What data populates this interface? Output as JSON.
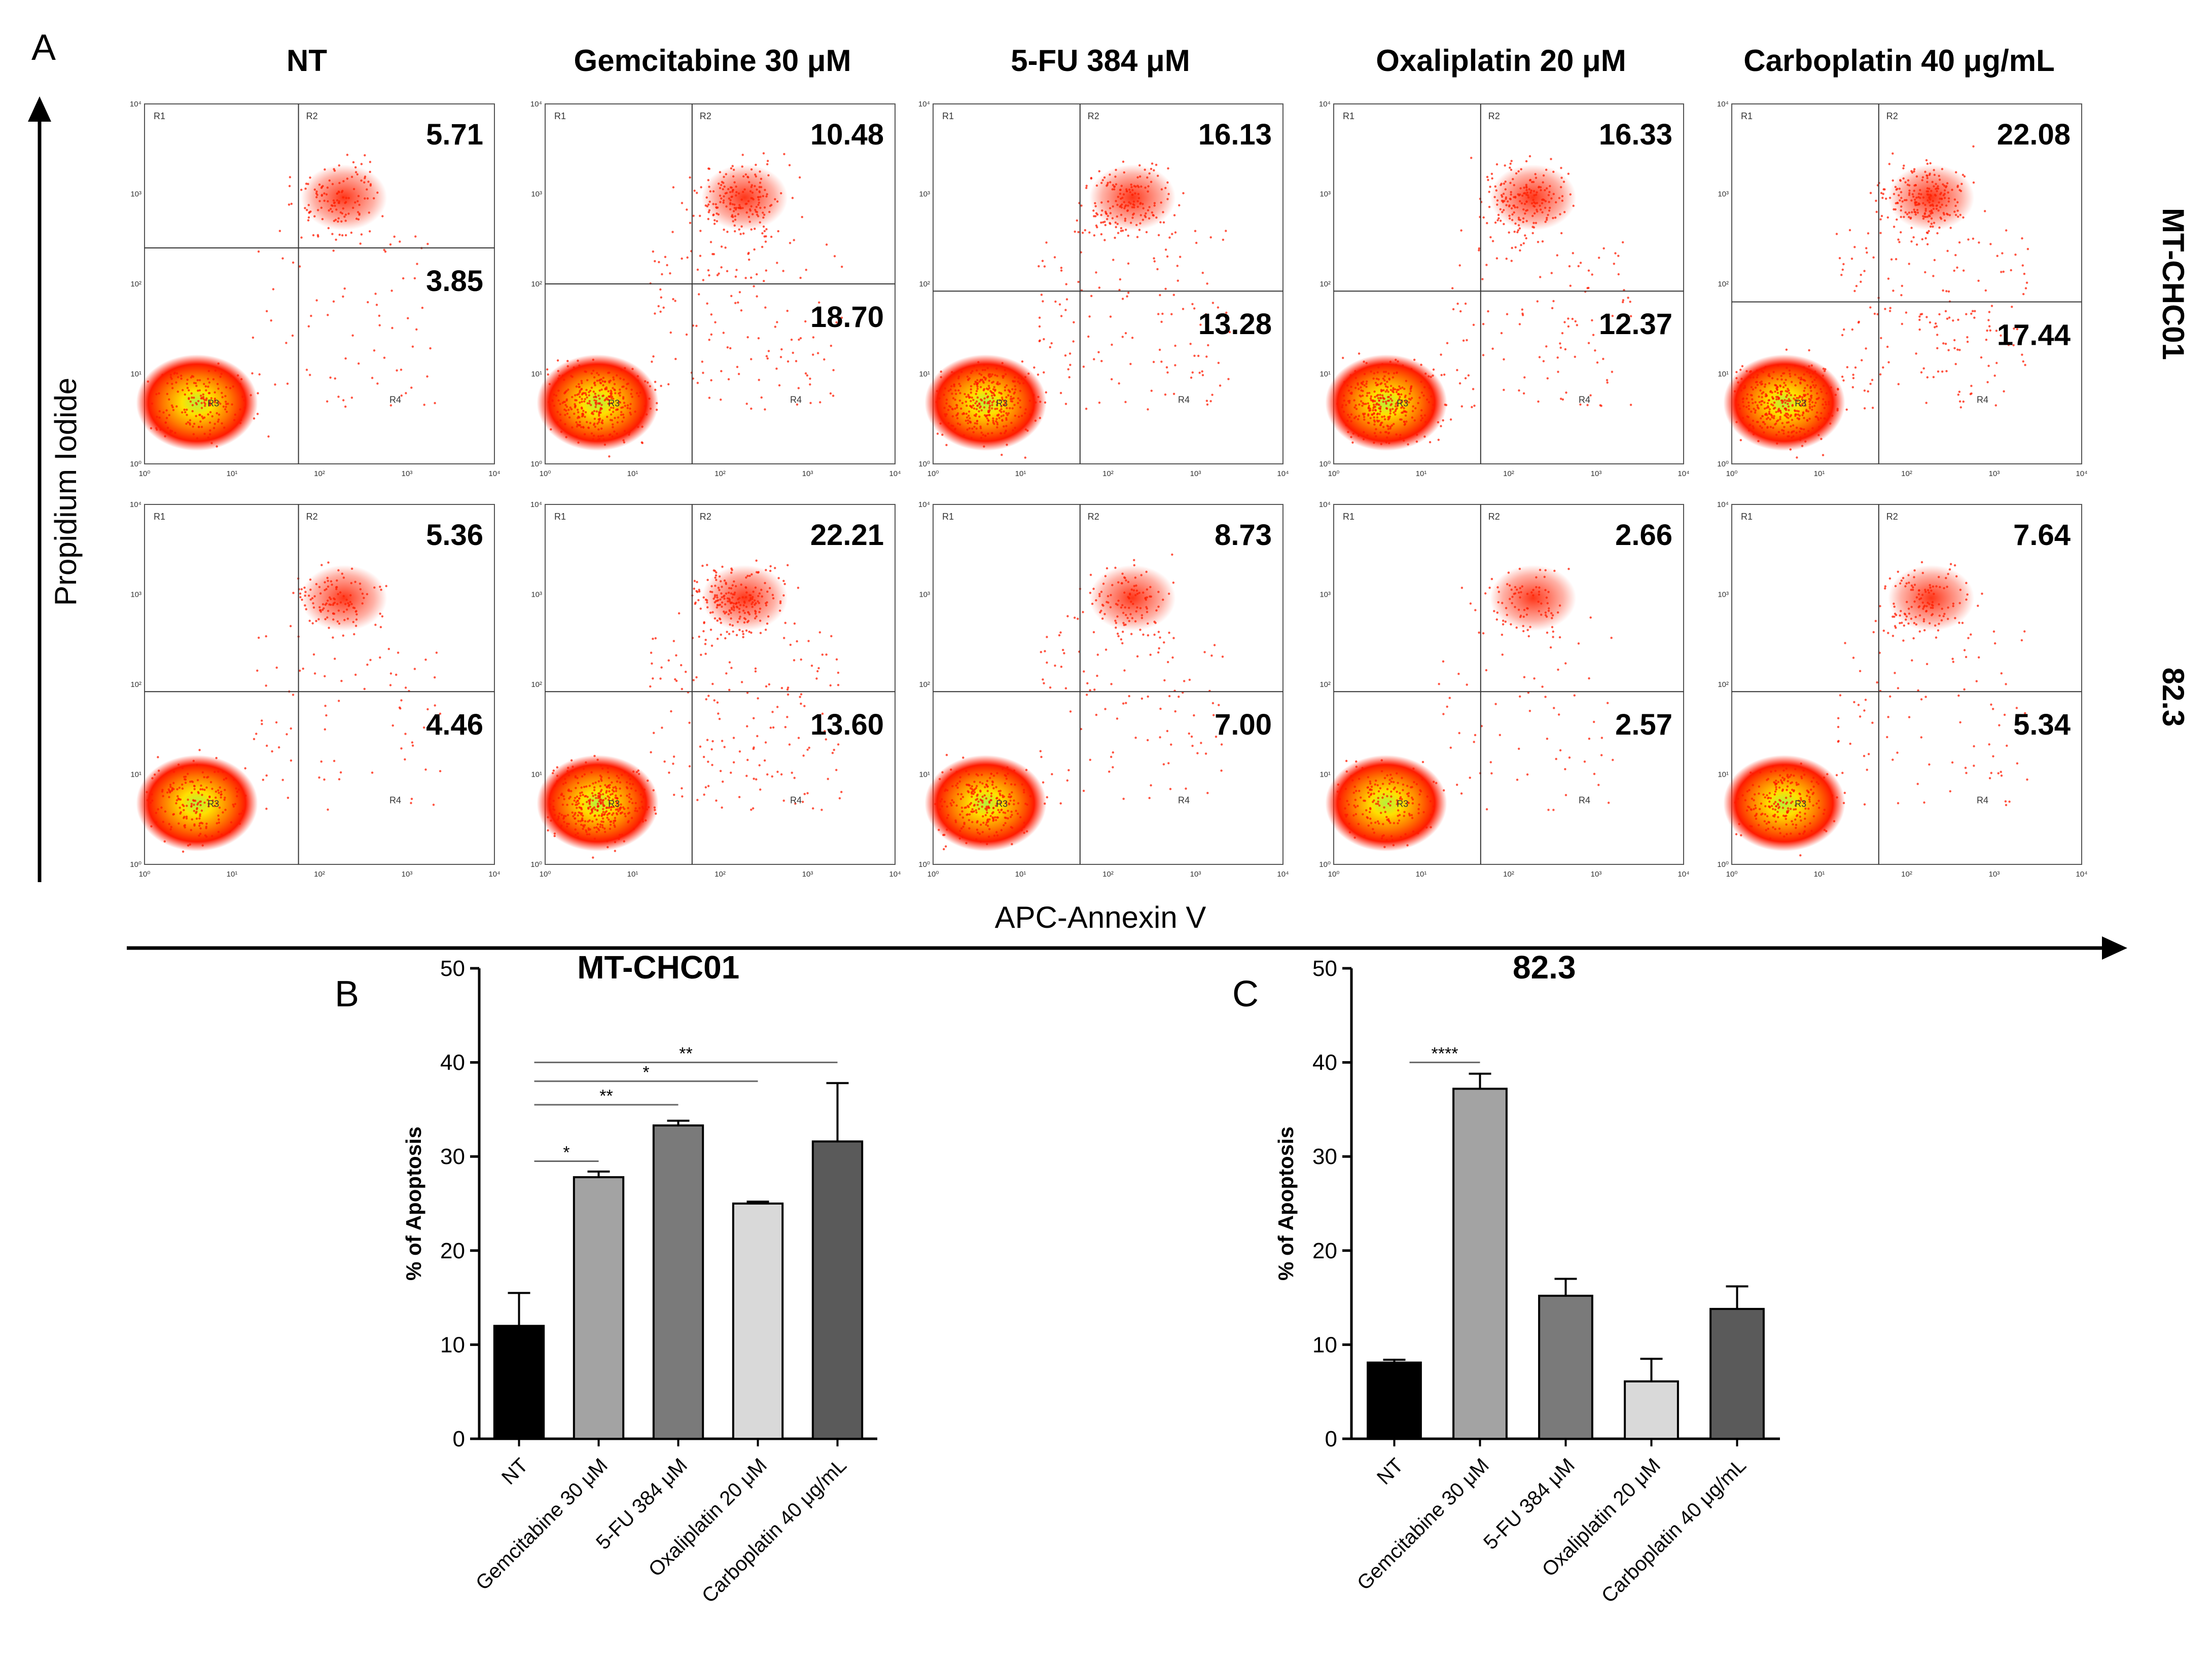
{
  "panels": {
    "a": "A",
    "b": "B",
    "c": "C"
  },
  "flow": {
    "columns": [
      "NT",
      "Gemcitabine 30 μM",
      "5-FU 384 μM",
      "Oxaliplatin 20 μM",
      "Carboplatin 40 μg/mL"
    ],
    "rows": [
      "MT-CHC01",
      "82.3"
    ],
    "y_axis_title": "Propidium Iodide",
    "x_axis_title": "APC-Annexin V",
    "gate_labels": [
      "R1",
      "R2",
      "R3",
      "R4"
    ],
    "axis_ticks": [
      "10⁰",
      "10¹",
      "10²",
      "10³",
      "10⁴"
    ],
    "quadrant_values": [
      [
        [
          "5.71",
          "3.85"
        ],
        [
          "10.48",
          "18.70"
        ],
        [
          "16.13",
          "13.28"
        ],
        [
          "16.33",
          "12.37"
        ],
        [
          "22.08",
          "17.44"
        ]
      ],
      [
        [
          "5.36",
          "4.46"
        ],
        [
          "22.21",
          "13.60"
        ],
        [
          "8.73",
          "7.00"
        ],
        [
          "2.66",
          "2.57"
        ],
        [
          "7.64",
          "5.34"
        ]
      ]
    ]
  },
  "chart_data": [
    {
      "type": "bar",
      "title": "MT-CHC01",
      "ylabel": "% of Apoptosis",
      "ylim": [
        0,
        50
      ],
      "yticks": [
        "0",
        "10",
        "20",
        "30",
        "40",
        "50"
      ],
      "categories": [
        "NT",
        "Gemcitabine 30 μM",
        "5-FU 384 μM",
        "Oxaliplatin 20 μM",
        "Carboplatin 40 μg/mL"
      ],
      "values": [
        12,
        27.8,
        33.3,
        25,
        31.6
      ],
      "errors": [
        3.5,
        0.6,
        0.5,
        0.2,
        6.2
      ],
      "colors": [
        "#000000",
        "#a3a3a3",
        "#7a7a7a",
        "#d9d9d9",
        "#5a5a5a"
      ],
      "significance": [
        {
          "from": 0,
          "to": 1,
          "label": "*"
        },
        {
          "from": 0,
          "to": 2,
          "label": "**"
        },
        {
          "from": 0,
          "to": 3,
          "label": "*"
        },
        {
          "from": 0,
          "to": 4,
          "label": "**"
        }
      ]
    },
    {
      "type": "bar",
      "title": "82.3",
      "ylabel": "% of Apoptosis",
      "ylim": [
        0,
        50
      ],
      "yticks": [
        "0",
        "10",
        "20",
        "30",
        "40",
        "50"
      ],
      "categories": [
        "NT",
        "Gemcitabine 30 μM",
        "5-FU 384 μM",
        "Oxaliplatin 20 μM",
        "Carboplatin 40 μg/mL"
      ],
      "values": [
        8.1,
        37.2,
        15.2,
        6.1,
        13.8
      ],
      "errors": [
        0.3,
        1.6,
        1.8,
        2.4,
        2.4
      ],
      "colors": [
        "#000000",
        "#a3a3a3",
        "#7a7a7a",
        "#d9d9d9",
        "#5a5a5a"
      ],
      "significance": [
        {
          "from": 0,
          "to": 1,
          "label": "****"
        }
      ]
    }
  ]
}
